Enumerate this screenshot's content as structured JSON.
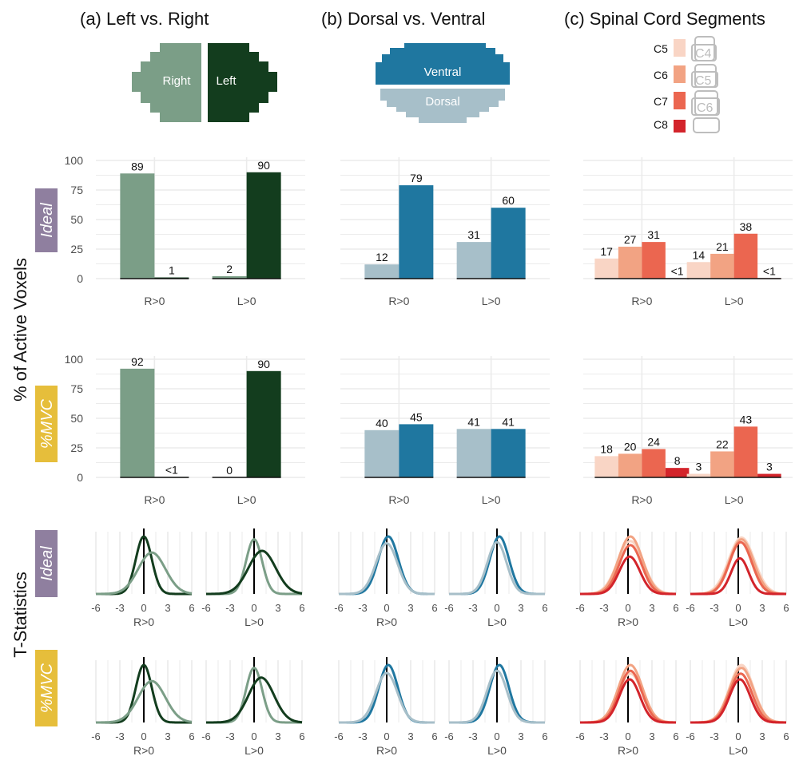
{
  "columns": [
    {
      "id": "a",
      "title": "(a)  Left vs. Right"
    },
    {
      "id": "b",
      "title": "(b)  Dorsal vs. Ventral"
    },
    {
      "id": "c",
      "title": "(c)  Spinal Cord Segments"
    }
  ],
  "illustrations": {
    "a": {
      "right_label": "Right",
      "left_label": "Left"
    },
    "b": {
      "ventral_label": "Ventral",
      "dorsal_label": "Dorsal"
    },
    "c": {
      "legend": [
        "C5",
        "C6",
        "C7",
        "C8"
      ],
      "vertebrae": [
        "C4",
        "C5",
        "C6"
      ]
    }
  },
  "y_axis_label": "% of Active Voxels",
  "t_axis_label": "T-Statistics",
  "row_labels": {
    "ideal": "Ideal",
    "mvc": "%MVC"
  },
  "colors": {
    "right": "#7b9e87",
    "left": "#133d1e",
    "dorsal": "#a7bfc9",
    "ventral": "#1f77a0",
    "c5": "#f9d5c5",
    "c6": "#f2a383",
    "c7": "#eb6650",
    "c8": "#d3242b",
    "ideal_box": "#8f7f9f",
    "mvc_box": "#e6be3b"
  },
  "chart_data": [
    {
      "type": "bar",
      "column": "a",
      "row": "Ideal",
      "categories": [
        "R>0",
        "L>0"
      ],
      "ylim": [
        0,
        100
      ],
      "yticks": [
        0,
        25,
        50,
        75,
        100
      ],
      "series": [
        {
          "name": "Right",
          "values": [
            89,
            2
          ],
          "labels": [
            "89",
            "2"
          ]
        },
        {
          "name": "Left",
          "values": [
            1,
            90
          ],
          "labels": [
            "1",
            "90"
          ]
        }
      ]
    },
    {
      "type": "bar",
      "column": "b",
      "row": "Ideal",
      "categories": [
        "R>0",
        "L>0"
      ],
      "ylim": [
        0,
        100
      ],
      "series": [
        {
          "name": "Dorsal",
          "values": [
            12,
            31
          ],
          "labels": [
            "12",
            "31"
          ]
        },
        {
          "name": "Ventral",
          "values": [
            79,
            60
          ],
          "labels": [
            "79",
            "60"
          ]
        }
      ]
    },
    {
      "type": "bar",
      "column": "c",
      "row": "Ideal",
      "categories": [
        "R>0",
        "L>0"
      ],
      "ylim": [
        0,
        100
      ],
      "series": [
        {
          "name": "C5",
          "values": [
            17,
            14
          ],
          "labels": [
            "17",
            "14"
          ]
        },
        {
          "name": "C6",
          "values": [
            27,
            21
          ],
          "labels": [
            "27",
            "21"
          ]
        },
        {
          "name": "C7",
          "values": [
            31,
            38
          ],
          "labels": [
            "31",
            "38"
          ]
        },
        {
          "name": "C8",
          "values": [
            0.4,
            0.4
          ],
          "labels": [
            "<1",
            "<1"
          ]
        }
      ]
    },
    {
      "type": "bar",
      "column": "a",
      "row": "%MVC",
      "categories": [
        "R>0",
        "L>0"
      ],
      "ylim": [
        0,
        100
      ],
      "yticks": [
        0,
        25,
        50,
        75,
        100
      ],
      "series": [
        {
          "name": "Right",
          "values": [
            92,
            0
          ],
          "labels": [
            "92",
            "0"
          ]
        },
        {
          "name": "Left",
          "values": [
            0.4,
            90
          ],
          "labels": [
            "<1",
            "90"
          ]
        }
      ]
    },
    {
      "type": "bar",
      "column": "b",
      "row": "%MVC",
      "categories": [
        "R>0",
        "L>0"
      ],
      "ylim": [
        0,
        100
      ],
      "series": [
        {
          "name": "Dorsal",
          "values": [
            40,
            41
          ],
          "labels": [
            "40",
            "41"
          ]
        },
        {
          "name": "Ventral",
          "values": [
            45,
            41
          ],
          "labels": [
            "45",
            "41"
          ]
        }
      ]
    },
    {
      "type": "bar",
      "column": "c",
      "row": "%MVC",
      "categories": [
        "R>0",
        "L>0"
      ],
      "ylim": [
        0,
        100
      ],
      "series": [
        {
          "name": "C5",
          "values": [
            18,
            3
          ],
          "labels": [
            "18",
            "3"
          ]
        },
        {
          "name": "C6",
          "values": [
            20,
            22
          ],
          "labels": [
            "20",
            "22"
          ]
        },
        {
          "name": "C7",
          "values": [
            24,
            43
          ],
          "labels": [
            "24",
            "43"
          ]
        },
        {
          "name": "C8",
          "values": [
            8,
            3
          ],
          "labels": [
            "8",
            "3"
          ]
        }
      ]
    }
  ],
  "density_data": {
    "type": "line",
    "xlim": [
      -6,
      6
    ],
    "xticks": [
      -6,
      -3,
      0,
      3,
      6
    ],
    "curves": {
      "a_ideal_R": [
        {
          "series": "Left",
          "mean": 0,
          "sd": 1.0,
          "peak": 1.0
        },
        {
          "series": "Right",
          "mean": 1.0,
          "sd": 1.7,
          "peak": 0.72
        }
      ],
      "a_ideal_L": [
        {
          "series": "Right",
          "mean": 0,
          "sd": 1.0,
          "peak": 0.95
        },
        {
          "series": "Left",
          "mean": 1.0,
          "sd": 1.7,
          "peak": 0.75
        }
      ],
      "b_ideal_R": [
        {
          "series": "Ventral",
          "mean": 0.2,
          "sd": 1.25,
          "peak": 1.0
        },
        {
          "series": "Dorsal",
          "mean": 0,
          "sd": 1.35,
          "peak": 0.88
        }
      ],
      "b_ideal_L": [
        {
          "series": "Ventral",
          "mean": 0.3,
          "sd": 1.2,
          "peak": 1.0
        },
        {
          "series": "Dorsal",
          "mean": 0,
          "sd": 1.2,
          "peak": 0.9
        }
      ],
      "c_ideal_R": [
        {
          "series": "C5",
          "mean": 0.3,
          "sd": 1.6,
          "peak": 0.92
        },
        {
          "series": "C6",
          "mean": 0.3,
          "sd": 1.5,
          "peak": 1.0
        },
        {
          "series": "C7",
          "mean": 0.3,
          "sd": 1.4,
          "peak": 0.85
        },
        {
          "series": "C8",
          "mean": 0.2,
          "sd": 1.3,
          "peak": 0.65
        }
      ],
      "c_ideal_L": [
        {
          "series": "C5",
          "mean": 0.4,
          "sd": 1.6,
          "peak": 0.98
        },
        {
          "series": "C6",
          "mean": 0.4,
          "sd": 1.5,
          "peak": 0.95
        },
        {
          "series": "C7",
          "mean": 0.3,
          "sd": 1.4,
          "peak": 0.9
        },
        {
          "series": "C8",
          "mean": 0.2,
          "sd": 1.1,
          "peak": 0.62
        }
      ],
      "a_mvc_R": [
        {
          "series": "Left",
          "mean": 0,
          "sd": 1.0,
          "peak": 1.0
        },
        {
          "series": "Right",
          "mean": 1.0,
          "sd": 1.7,
          "peak": 0.72
        }
      ],
      "a_mvc_L": [
        {
          "series": "Right",
          "mean": 0,
          "sd": 1.0,
          "peak": 0.95
        },
        {
          "series": "Left",
          "mean": 0.9,
          "sd": 1.6,
          "peak": 0.78
        }
      ],
      "b_mvc_R": [
        {
          "series": "Ventral",
          "mean": 0.2,
          "sd": 1.2,
          "peak": 1.0
        },
        {
          "series": "Dorsal",
          "mean": 0,
          "sd": 1.35,
          "peak": 0.86
        }
      ],
      "b_mvc_L": [
        {
          "series": "Ventral",
          "mean": 0.3,
          "sd": 1.2,
          "peak": 1.0
        },
        {
          "series": "Dorsal",
          "mean": 0,
          "sd": 1.25,
          "peak": 0.9
        }
      ],
      "c_mvc_R": [
        {
          "series": "C5",
          "mean": 0.3,
          "sd": 1.5,
          "peak": 0.85
        },
        {
          "series": "C6",
          "mean": 0.3,
          "sd": 1.5,
          "peak": 1.0
        },
        {
          "series": "C7",
          "mean": 0.3,
          "sd": 1.4,
          "peak": 0.9
        },
        {
          "series": "C8",
          "mean": 0.2,
          "sd": 1.3,
          "peak": 0.75
        }
      ],
      "c_mvc_L": [
        {
          "series": "C5",
          "mean": 0.4,
          "sd": 1.5,
          "peak": 1.0
        },
        {
          "series": "C6",
          "mean": 0.4,
          "sd": 1.5,
          "peak": 0.95
        },
        {
          "series": "C7",
          "mean": 0.3,
          "sd": 1.4,
          "peak": 0.85
        },
        {
          "series": "C8",
          "mean": 0.2,
          "sd": 1.3,
          "peak": 0.75
        }
      ]
    }
  }
}
